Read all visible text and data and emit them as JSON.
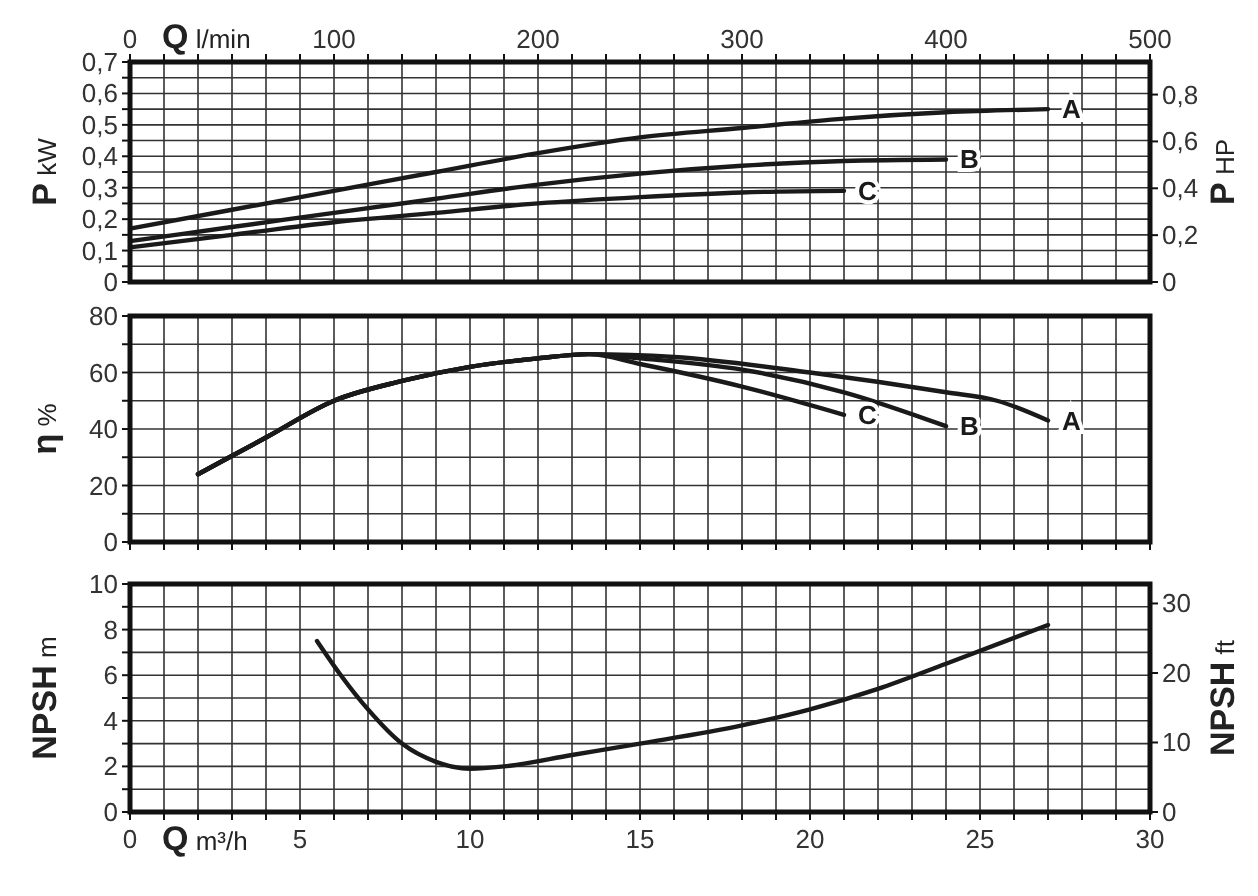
{
  "chart_data": [
    {
      "type": "line",
      "ylabel": "P kW",
      "y2label": "P HP",
      "xlabel": "Q l/min",
      "xlim": [
        0,
        500
      ],
      "xticks": [
        0,
        {
          "value": 16.67,
          "label": null
        },
        {
          "value": 33.33,
          "label": null
        },
        {
          "value": 50,
          "label": null
        },
        {
          "value": 66.67,
          "label": null
        },
        {
          "value": 83.33,
          "label": null
        },
        100,
        {
          "value": 116.67,
          "label": null
        },
        {
          "value": 133.33,
          "label": null
        },
        {
          "value": 150,
          "label": null
        },
        {
          "value": 166.67,
          "label": null
        },
        {
          "value": 183.33,
          "label": null
        },
        200,
        {
          "value": 216.67,
          "label": null
        },
        {
          "value": 233.33,
          "label": null
        },
        {
          "value": 250,
          "label": null
        },
        {
          "value": 266.67,
          "label": null
        },
        {
          "value": 283.33,
          "label": null
        },
        300,
        {
          "value": 316.67,
          "label": null
        },
        {
          "value": 333.33,
          "label": null
        },
        {
          "value": 350,
          "label": null
        },
        {
          "value": 366.67,
          "label": null
        },
        {
          "value": 383.33,
          "label": null
        },
        400,
        {
          "value": 416.67,
          "label": null
        },
        {
          "value": 433.33,
          "label": null
        },
        {
          "value": 450,
          "label": null
        },
        {
          "value": 466.67,
          "label": null
        },
        {
          "value": 483.33,
          "label": null
        },
        500
      ],
      "ylim": [
        0,
        0.7
      ],
      "yticks": [
        0,
        {
          "value": 0.05,
          "label": null
        },
        {
          "value": 0.1,
          "label": "0,1"
        },
        {
          "value": 0.15,
          "label": null
        },
        {
          "value": 0.2,
          "label": "0,2"
        },
        {
          "value": 0.25,
          "label": null
        },
        {
          "value": 0.3,
          "label": "0,3"
        },
        {
          "value": 0.35,
          "label": null
        },
        {
          "value": 0.4,
          "label": "0,4"
        },
        {
          "value": 0.45,
          "label": null
        },
        {
          "value": 0.5,
          "label": "0,5"
        },
        {
          "value": 0.55,
          "label": null
        },
        {
          "value": 0.6,
          "label": "0,6"
        },
        {
          "value": 0.65,
          "label": null
        },
        {
          "value": 0.7,
          "label": "0,7"
        }
      ],
      "y2lim": [
        0,
        0.939
      ],
      "y2ticks": [
        0,
        {
          "value": 0.2,
          "label": "0,2"
        },
        {
          "value": 0.4,
          "label": "0,4"
        },
        {
          "value": 0.6,
          "label": "0,6"
        },
        {
          "value": 0.8,
          "label": "0,8"
        }
      ],
      "grid": true,
      "legend": false,
      "series": [
        {
          "name": "A",
          "color": "#1a1a1a",
          "x": [
            0,
            50,
            100,
            150,
            200,
            250,
            300,
            350,
            400,
            450
          ],
          "values": [
            0.17,
            0.23,
            0.29,
            0.35,
            0.41,
            0.46,
            0.49,
            0.52,
            0.54,
            0.55
          ]
        },
        {
          "name": "B",
          "color": "#1a1a1a",
          "x": [
            0,
            50,
            100,
            150,
            200,
            250,
            300,
            350,
            400
          ],
          "values": [
            0.13,
            0.175,
            0.22,
            0.265,
            0.31,
            0.345,
            0.37,
            0.385,
            0.39
          ]
        },
        {
          "name": "C",
          "color": "#1a1a1a",
          "x": [
            0,
            50,
            100,
            150,
            200,
            250,
            300,
            350
          ],
          "values": [
            0.11,
            0.15,
            0.19,
            0.22,
            0.25,
            0.27,
            0.285,
            0.29
          ]
        }
      ]
    },
    {
      "type": "line",
      "ylabel": "η %",
      "xlim": [
        0,
        30
      ],
      "xticks": [
        {
          "value": 0,
          "label": null
        },
        {
          "value": 1,
          "label": null
        },
        {
          "value": 2,
          "label": null
        },
        {
          "value": 3,
          "label": null
        },
        {
          "value": 4,
          "label": null
        },
        {
          "value": 5,
          "label": null
        },
        {
          "value": 6,
          "label": null
        },
        {
          "value": 7,
          "label": null
        },
        {
          "value": 8,
          "label": null
        },
        {
          "value": 9,
          "label": null
        },
        {
          "value": 10,
          "label": null
        },
        {
          "value": 11,
          "label": null
        },
        {
          "value": 12,
          "label": null
        },
        {
          "value": 13,
          "label": null
        },
        {
          "value": 14,
          "label": null
        },
        {
          "value": 15,
          "label": null
        },
        {
          "value": 16,
          "label": null
        },
        {
          "value": 17,
          "label": null
        },
        {
          "value": 18,
          "label": null
        },
        {
          "value": 19,
          "label": null
        },
        {
          "value": 20,
          "label": null
        },
        {
          "value": 21,
          "label": null
        },
        {
          "value": 22,
          "label": null
        },
        {
          "value": 23,
          "label": null
        },
        {
          "value": 24,
          "label": null
        },
        {
          "value": 25,
          "label": null
        },
        {
          "value": 26,
          "label": null
        },
        {
          "value": 27,
          "label": null
        },
        {
          "value": 28,
          "label": null
        },
        {
          "value": 29,
          "label": null
        },
        {
          "value": 30,
          "label": null
        }
      ],
      "ylim": [
        0,
        80
      ],
      "yticks": [
        0,
        {
          "value": 10,
          "label": null
        },
        20,
        {
          "value": 30,
          "label": null
        },
        40,
        {
          "value": 50,
          "label": null
        },
        60,
        {
          "value": 70,
          "label": null
        },
        80
      ],
      "tick_labels": "y",
      "grid": true,
      "legend": false,
      "series": [
        {
          "name": "A",
          "color": "#1a1a1a",
          "x": [
            2,
            4,
            6,
            8,
            10,
            12,
            13.5,
            16,
            20,
            24,
            25.5,
            27
          ],
          "values": [
            24,
            37,
            50,
            57,
            62,
            65,
            66.5,
            65.5,
            60,
            53,
            50,
            43
          ]
        },
        {
          "name": "B",
          "color": "#1a1a1a",
          "x": [
            2,
            4,
            6,
            8,
            10,
            12,
            13.5,
            15,
            18,
            21,
            24
          ],
          "values": [
            24,
            37,
            50,
            57,
            62,
            65,
            66.5,
            65,
            61,
            53,
            41
          ]
        },
        {
          "name": "C",
          "color": "#1a1a1a",
          "x": [
            2,
            4,
            6,
            8,
            10,
            12,
            13.5,
            15,
            18,
            21
          ],
          "values": [
            24,
            37,
            50,
            57,
            62,
            65,
            66.5,
            63,
            55,
            45
          ]
        }
      ]
    },
    {
      "type": "line",
      "ylabel": "NPSH m",
      "y2label": "NPSH ft",
      "xlabel": "Q m³/h",
      "xlim": [
        0,
        30
      ],
      "xticks": [
        0,
        {
          "value": 1,
          "label": null
        },
        {
          "value": 2,
          "label": null
        },
        {
          "value": 3,
          "label": null
        },
        {
          "value": 4,
          "label": null
        },
        5,
        {
          "value": 6,
          "label": null
        },
        {
          "value": 7,
          "label": null
        },
        {
          "value": 8,
          "label": null
        },
        {
          "value": 9,
          "label": null
        },
        10,
        {
          "value": 11,
          "label": null
        },
        {
          "value": 12,
          "label": null
        },
        {
          "value": 13,
          "label": null
        },
        {
          "value": 14,
          "label": null
        },
        15,
        {
          "value": 16,
          "label": null
        },
        {
          "value": 17,
          "label": null
        },
        {
          "value": 18,
          "label": null
        },
        {
          "value": 19,
          "label": null
        },
        20,
        {
          "value": 21,
          "label": null
        },
        {
          "value": 22,
          "label": null
        },
        {
          "value": 23,
          "label": null
        },
        {
          "value": 24,
          "label": null
        },
        25,
        {
          "value": 26,
          "label": null
        },
        {
          "value": 27,
          "label": null
        },
        {
          "value": 28,
          "label": null
        },
        {
          "value": 29,
          "label": null
        },
        30
      ],
      "ylim": [
        0,
        10
      ],
      "yticks": [
        0,
        {
          "value": 1,
          "label": null
        },
        2,
        {
          "value": 3,
          "label": null
        },
        4,
        {
          "value": 5,
          "label": null
        },
        6,
        {
          "value": 7,
          "label": null
        },
        8,
        {
          "value": 9,
          "label": null
        },
        10
      ],
      "y2lim": [
        0,
        32.8
      ],
      "y2ticks": [
        0,
        10,
        20,
        30
      ],
      "grid": true,
      "legend": false,
      "series": [
        {
          "color": "#1a1a1a",
          "x": [
            5.5,
            6.2,
            7,
            8,
            9,
            10,
            11,
            13,
            15,
            18,
            20,
            22,
            24,
            27
          ],
          "values": [
            7.5,
            6,
            4.5,
            3,
            2.2,
            1.9,
            2,
            2.5,
            3,
            3.8,
            4.5,
            5.4,
            6.5,
            8.2
          ]
        }
      ]
    }
  ]
}
